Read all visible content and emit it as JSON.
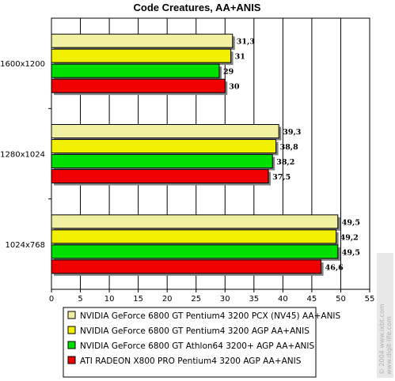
{
  "chart_data": {
    "type": "bar",
    "orientation": "horizontal",
    "title": "Code Creatures, AA+ANIS",
    "categories": [
      "1600x1200",
      "1280x1024",
      "1024x768"
    ],
    "series": [
      {
        "name": "NVIDIA GeForce 6800 GT Pentium4 3200 PCX (NV45) AA+ANIS",
        "color": "#f0f0a0",
        "values": [
          31.3,
          39.3,
          49.5
        ],
        "labels": [
          "31,3",
          "39,3",
          "49,5"
        ]
      },
      {
        "name": "NVIDIA GeForce 6800 GT Pentium4 3200 AGP AA+ANIS",
        "color": "#f0f000",
        "values": [
          31,
          38.8,
          49.2
        ],
        "labels": [
          "31",
          "38,8",
          "49,2"
        ]
      },
      {
        "name": "NVIDIA GeForce 6800 GT Athlon64 3200+ AGP AA+ANIS",
        "color": "#00e000",
        "values": [
          29,
          38.2,
          49.5
        ],
        "labels": [
          "29",
          "38,2",
          "49,5"
        ]
      },
      {
        "name": "ATI RADEON X800 PRO Pentium4 3200 AGP AA+ANIS",
        "color": "#f00000",
        "values": [
          30,
          37.5,
          46.6
        ],
        "labels": [
          "30",
          "37,5",
          "46,6"
        ]
      }
    ],
    "xlim": [
      0,
      55
    ],
    "xticks": [
      "0",
      "5",
      "10",
      "15",
      "20",
      "25",
      "30",
      "35",
      "40",
      "45",
      "50",
      "55"
    ],
    "grid": true,
    "legend_position": "bottom",
    "plot_background": "#ffffff",
    "gridline_color": "#000000"
  },
  "watermark": {
    "line1": "© 2004 www.ixbt.com",
    "line2": "www.digit-life.com"
  }
}
